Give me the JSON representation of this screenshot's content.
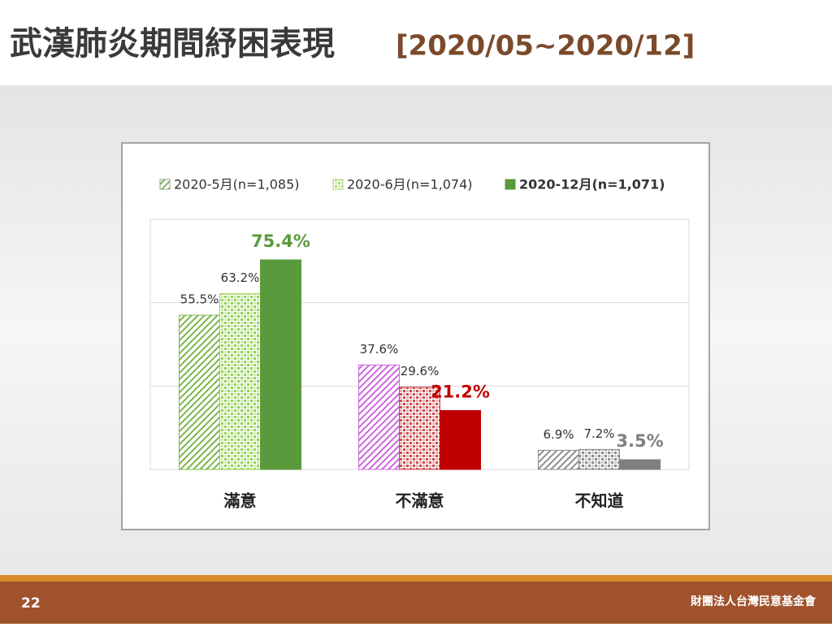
{
  "slide": {
    "title": "武漢肺炎期間紓困表現",
    "subtitle": "[2020/05~2020/12]",
    "page_number": "22",
    "organization": "財團法人台灣民意基金會"
  },
  "chart_data": {
    "type": "bar",
    "categories": [
      "滿意",
      "不滿意",
      "不知道"
    ],
    "series": [
      {
        "name": "2020-5月(n=1,085)",
        "color": "#8aa870",
        "colors": [
          "#7ab648",
          "#cc66dd",
          "#8c8c8c"
        ],
        "values": [
          55.5,
          37.6,
          6.9
        ],
        "value_labels": [
          "55.5%",
          "37.6%",
          "6.9%"
        ]
      },
      {
        "name": "2020-6月(n=1,074)",
        "color": "#a6dc74",
        "colors": [
          "#92d050",
          "#d04848",
          "#8c8c8c"
        ],
        "values": [
          63.2,
          29.6,
          7.2
        ],
        "value_labels": [
          "63.2%",
          "29.6%",
          "7.2%"
        ]
      },
      {
        "name": "2020-12月(n=1,071)",
        "color": "#5a9a3c",
        "colors": [
          "#5a9a3c",
          "#c00000",
          "#7f7f7f"
        ],
        "values": [
          75.4,
          21.2,
          3.5
        ],
        "value_labels": [
          "75.4%",
          "21.2%",
          "3.5%"
        ]
      }
    ],
    "ylim": [
      0,
      90
    ],
    "yticks": [
      0,
      30,
      60,
      90
    ],
    "grid": true
  }
}
